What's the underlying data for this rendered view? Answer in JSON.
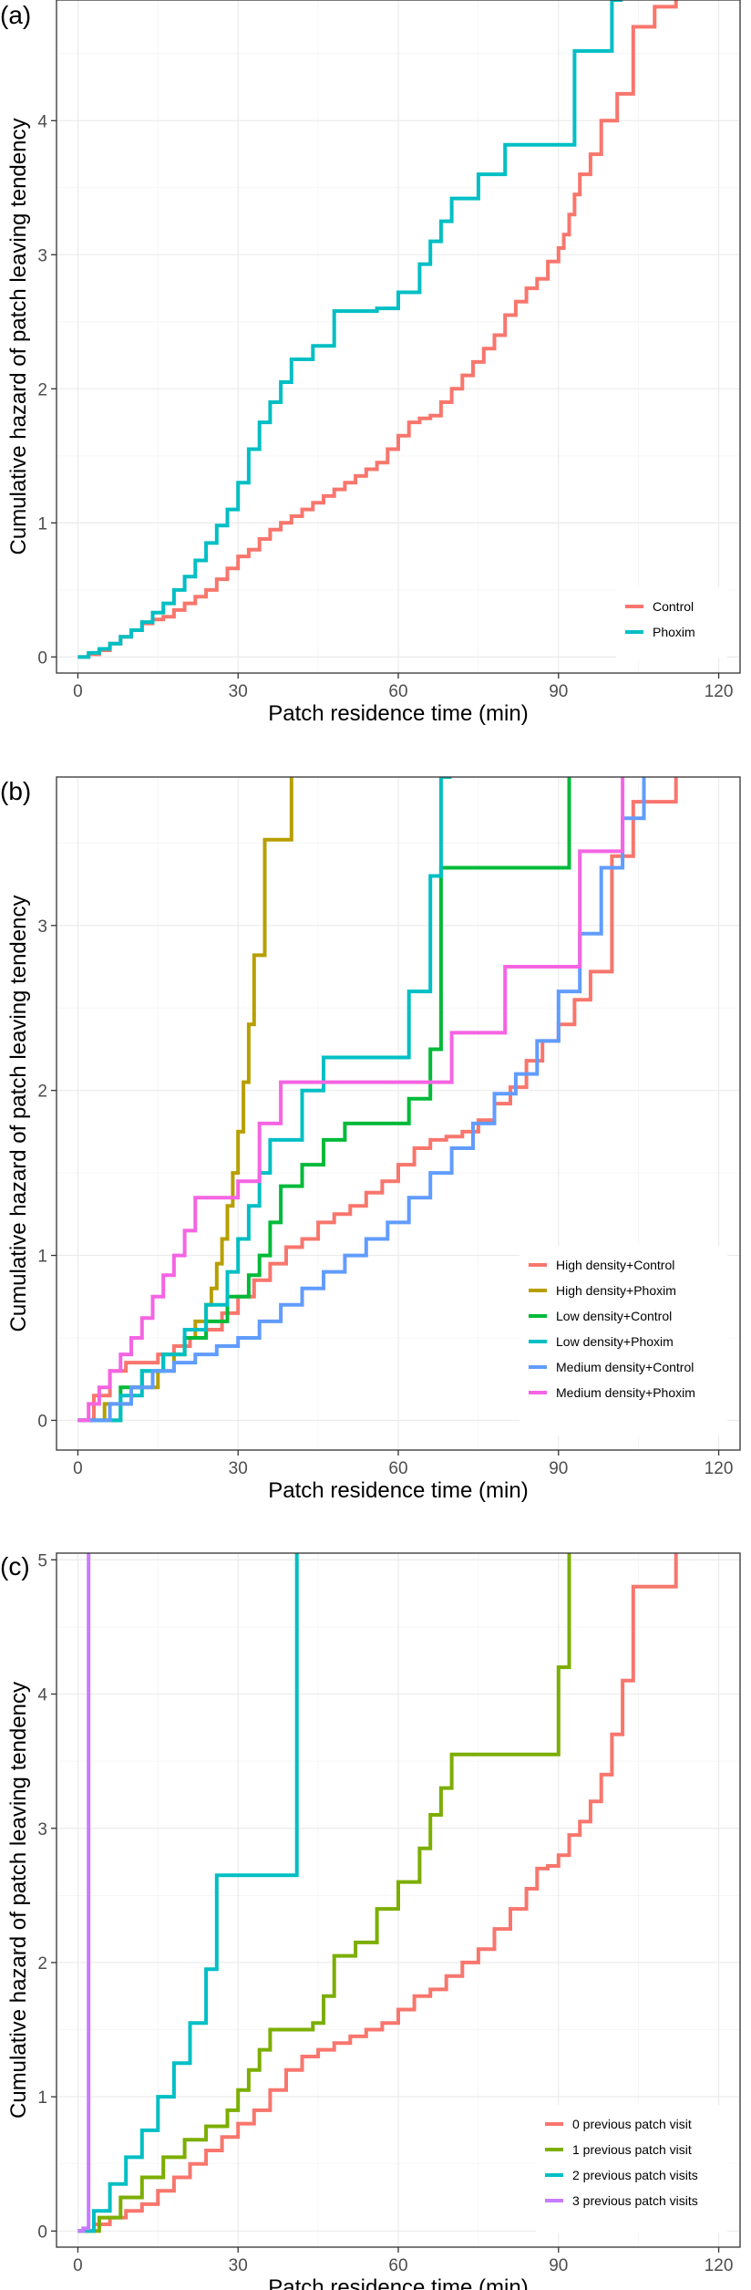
{
  "chart_data": [
    {
      "panel_label": "(a)",
      "type": "line",
      "step": true,
      "xlabel": "Patch residence time (min)",
      "ylabel": "Cumulative hazard of patch leaving tendency",
      "xlim": [
        -4,
        124
      ],
      "ylim": [
        -0.12,
        4.9
      ],
      "xticks": [
        0,
        30,
        60,
        90,
        120
      ],
      "xtick_labels": [
        "0",
        "30",
        "60",
        "90",
        "120"
      ],
      "yticks": [
        0,
        1,
        2,
        3,
        4
      ],
      "ytick_labels": [
        "0",
        "1",
        "2",
        "3",
        "4"
      ],
      "grid": true,
      "legend_position": "bottom-right",
      "series": [
        {
          "name": "Control",
          "color": "#F8766D",
          "x": [
            0,
            2,
            4,
            6,
            8,
            10,
            12,
            14,
            16,
            18,
            20,
            22,
            24,
            26,
            28,
            30,
            32,
            34,
            36,
            38,
            40,
            42,
            44,
            46,
            48,
            50,
            52,
            54,
            56,
            58,
            60,
            62,
            64,
            66,
            68,
            70,
            72,
            74,
            76,
            78,
            80,
            82,
            84,
            86,
            88,
            90,
            91,
            92,
            93,
            94,
            96,
            98,
            101,
            104,
            108,
            112
          ],
          "y": [
            0,
            0.02,
            0.05,
            0.1,
            0.15,
            0.2,
            0.25,
            0.28,
            0.3,
            0.35,
            0.4,
            0.45,
            0.5,
            0.58,
            0.66,
            0.75,
            0.8,
            0.88,
            0.95,
            1.0,
            1.05,
            1.1,
            1.15,
            1.2,
            1.25,
            1.3,
            1.35,
            1.4,
            1.45,
            1.55,
            1.65,
            1.75,
            1.78,
            1.8,
            1.9,
            2.0,
            2.1,
            2.2,
            2.3,
            2.4,
            2.55,
            2.65,
            2.75,
            2.82,
            2.95,
            3.05,
            3.15,
            3.3,
            3.45,
            3.6,
            3.75,
            4.0,
            4.2,
            4.7,
            4.85,
            4.9
          ]
        },
        {
          "name": "Phoxim",
          "color": "#00BFC4",
          "x": [
            0,
            2,
            4,
            6,
            8,
            10,
            12,
            14,
            16,
            18,
            20,
            22,
            24,
            26,
            28,
            30,
            32,
            34,
            36,
            38,
            40,
            44,
            48,
            52,
            56,
            60,
            64,
            66,
            68,
            70,
            75,
            80,
            85,
            90,
            93,
            96,
            100,
            102
          ],
          "y": [
            0,
            0.03,
            0.06,
            0.1,
            0.15,
            0.2,
            0.26,
            0.33,
            0.4,
            0.5,
            0.6,
            0.72,
            0.85,
            0.98,
            1.1,
            1.3,
            1.55,
            1.75,
            1.9,
            2.05,
            2.22,
            2.32,
            2.58,
            2.58,
            2.6,
            2.72,
            2.93,
            3.1,
            3.25,
            3.42,
            3.6,
            3.82,
            3.82,
            3.82,
            4.52,
            4.52,
            4.9,
            4.9
          ]
        }
      ]
    },
    {
      "panel_label": "(b)",
      "type": "line",
      "step": true,
      "xlabel": "Patch residence time (min)",
      "ylabel": "Cumulative hazard of patch leaving tendency",
      "xlim": [
        -4,
        124
      ],
      "ylim": [
        -0.18,
        3.9
      ],
      "xticks": [
        0,
        30,
        60,
        90,
        120
      ],
      "xtick_labels": [
        "0",
        "30",
        "60",
        "90",
        "120"
      ],
      "yticks": [
        0,
        1,
        2,
        3
      ],
      "ytick_labels": [
        "0",
        "1",
        "2",
        "3"
      ],
      "grid": true,
      "legend_position": "bottom-right",
      "series": [
        {
          "name": "High density+Control",
          "color": "#F8766D",
          "x": [
            0,
            3,
            6,
            9,
            12,
            15,
            18,
            21,
            24,
            27,
            30,
            33,
            36,
            39,
            42,
            45,
            48,
            51,
            54,
            57,
            60,
            63,
            66,
            69,
            72,
            75,
            78,
            81,
            84,
            87,
            90,
            93,
            96,
            100,
            104,
            108,
            112
          ],
          "y": [
            0,
            0.15,
            0.3,
            0.35,
            0.35,
            0.4,
            0.45,
            0.5,
            0.55,
            0.65,
            0.75,
            0.85,
            0.95,
            1.05,
            1.1,
            1.2,
            1.25,
            1.3,
            1.38,
            1.45,
            1.55,
            1.65,
            1.7,
            1.72,
            1.75,
            1.82,
            1.92,
            2.02,
            2.18,
            2.3,
            2.4,
            2.55,
            2.72,
            3.42,
            3.75,
            3.75,
            3.9
          ]
        },
        {
          "name": "High density+Phoxim",
          "color": "#B79F00",
          "x": [
            0,
            5,
            10,
            15,
            18,
            20,
            22,
            24,
            25,
            26,
            27,
            28,
            29,
            30,
            31,
            32,
            33,
            35,
            40
          ],
          "y": [
            0,
            0.1,
            0.2,
            0.3,
            0.4,
            0.5,
            0.6,
            0.7,
            0.8,
            0.95,
            1.1,
            1.3,
            1.5,
            1.75,
            2.05,
            2.4,
            2.82,
            3.52,
            3.9
          ]
        },
        {
          "name": "Low density+Control",
          "color": "#00BA38",
          "x": [
            0,
            8,
            12,
            16,
            20,
            24,
            28,
            32,
            34,
            36,
            38,
            42,
            46,
            50,
            54,
            58,
            62,
            66,
            68,
            80,
            88,
            92
          ],
          "y": [
            0,
            0.2,
            0.3,
            0.4,
            0.5,
            0.6,
            0.75,
            0.88,
            1.0,
            1.2,
            1.42,
            1.55,
            1.7,
            1.8,
            1.8,
            1.8,
            1.95,
            2.25,
            3.35,
            3.35,
            3.35,
            3.9
          ]
        },
        {
          "name": "Low density+Phoxim",
          "color": "#00BFC4",
          "x": [
            0,
            8,
            12,
            16,
            20,
            24,
            28,
            30,
            32,
            34,
            36,
            38,
            42,
            46,
            50,
            56,
            62,
            66,
            68,
            70
          ],
          "y": [
            0,
            0.15,
            0.3,
            0.4,
            0.55,
            0.7,
            0.9,
            1.1,
            1.3,
            1.5,
            1.7,
            1.7,
            2.0,
            2.2,
            2.2,
            2.2,
            2.6,
            3.3,
            3.9,
            3.9
          ]
        },
        {
          "name": "Medium density+Control",
          "color": "#619CFF",
          "x": [
            0,
            6,
            10,
            14,
            18,
            22,
            26,
            30,
            34,
            38,
            42,
            46,
            50,
            54,
            58,
            62,
            66,
            70,
            74,
            78,
            82,
            86,
            90,
            94,
            98,
            102,
            106
          ],
          "y": [
            0,
            0.1,
            0.2,
            0.3,
            0.35,
            0.4,
            0.45,
            0.5,
            0.6,
            0.7,
            0.8,
            0.9,
            1.0,
            1.1,
            1.2,
            1.35,
            1.5,
            1.65,
            1.8,
            1.98,
            2.1,
            2.3,
            2.6,
            2.95,
            3.35,
            3.65,
            3.9
          ]
        },
        {
          "name": "Medium density+Phoxim",
          "color": "#F564E3",
          "x": [
            0,
            2,
            4,
            6,
            8,
            10,
            12,
            14,
            16,
            18,
            20,
            22,
            26,
            30,
            34,
            38,
            46,
            56,
            66,
            70,
            80,
            88,
            94,
            98,
            102
          ],
          "y": [
            0,
            0.1,
            0.2,
            0.3,
            0.4,
            0.5,
            0.62,
            0.75,
            0.88,
            1.0,
            1.15,
            1.35,
            1.35,
            1.45,
            1.8,
            2.05,
            2.05,
            2.05,
            2.05,
            2.35,
            2.75,
            2.75,
            3.45,
            3.45,
            3.9
          ]
        }
      ]
    },
    {
      "panel_label": "(c)",
      "type": "line",
      "step": true,
      "xlabel": "Patch residence time (min)",
      "ylabel": "Cumulative hazard of patch leaving tendency",
      "xlim": [
        -4,
        124
      ],
      "ylim": [
        -0.12,
        5.05
      ],
      "xticks": [
        0,
        30,
        60,
        90,
        120
      ],
      "xtick_labels": [
        "0",
        "30",
        "60",
        "90",
        "120"
      ],
      "yticks": [
        0,
        1,
        2,
        3,
        4,
        5
      ],
      "ytick_labels": [
        "0",
        "1",
        "2",
        "3",
        "4",
        "5"
      ],
      "grid": true,
      "legend_position": "bottom-right",
      "series": [
        {
          "name": "0 previous patch visit",
          "color": "#F8766D",
          "x": [
            0,
            3,
            6,
            9,
            12,
            15,
            18,
            21,
            24,
            27,
            30,
            33,
            36,
            39,
            42,
            45,
            48,
            51,
            54,
            57,
            60,
            63,
            66,
            69,
            72,
            75,
            78,
            81,
            84,
            86,
            88,
            90,
            92,
            94,
            96,
            98,
            100,
            102,
            104,
            108,
            112
          ],
          "y": [
            0,
            0.05,
            0.1,
            0.15,
            0.2,
            0.3,
            0.4,
            0.5,
            0.6,
            0.7,
            0.8,
            0.9,
            1.05,
            1.2,
            1.3,
            1.35,
            1.4,
            1.45,
            1.5,
            1.55,
            1.65,
            1.75,
            1.8,
            1.9,
            2.0,
            2.1,
            2.25,
            2.4,
            2.55,
            2.7,
            2.72,
            2.8,
            2.95,
            3.05,
            3.2,
            3.4,
            3.7,
            4.1,
            4.8,
            4.8,
            5.05
          ]
        },
        {
          "name": "1 previous patch visit",
          "color": "#7CAE00",
          "x": [
            0,
            4,
            8,
            12,
            16,
            20,
            24,
            28,
            30,
            32,
            34,
            36,
            40,
            44,
            46,
            48,
            50,
            52,
            56,
            60,
            64,
            66,
            68,
            70,
            80,
            88,
            90,
            92
          ],
          "y": [
            0,
            0.1,
            0.25,
            0.4,
            0.55,
            0.68,
            0.78,
            0.9,
            1.05,
            1.2,
            1.35,
            1.5,
            1.5,
            1.55,
            1.75,
            2.05,
            2.05,
            2.15,
            2.4,
            2.6,
            2.85,
            3.1,
            3.3,
            3.55,
            3.55,
            3.55,
            4.2,
            5.05
          ]
        },
        {
          "name": "2 previous patch visits",
          "color": "#00BFC4",
          "x": [
            0,
            3,
            6,
            9,
            12,
            15,
            18,
            21,
            24,
            26,
            32,
            38,
            40,
            41
          ],
          "y": [
            0,
            0.15,
            0.35,
            0.55,
            0.75,
            1.0,
            1.25,
            1.55,
            1.95,
            2.65,
            2.65,
            2.65,
            2.65,
            5.05
          ]
        },
        {
          "name": "3 previous patch visits",
          "color": "#C77CFF",
          "x": [
            0,
            1,
            2
          ],
          "y": [
            0,
            0.02,
            5.05
          ]
        }
      ]
    }
  ]
}
